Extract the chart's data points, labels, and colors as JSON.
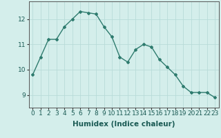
{
  "x": [
    0,
    1,
    2,
    3,
    4,
    5,
    6,
    7,
    8,
    9,
    10,
    11,
    12,
    13,
    14,
    15,
    16,
    17,
    18,
    19,
    20,
    21,
    22,
    23
  ],
  "y": [
    9.8,
    10.5,
    11.2,
    11.2,
    11.7,
    12.0,
    12.3,
    12.25,
    12.2,
    11.7,
    11.3,
    10.5,
    10.3,
    10.8,
    11.0,
    10.9,
    10.4,
    10.1,
    9.8,
    9.35,
    9.1,
    9.1,
    9.1,
    8.9
  ],
  "line_color": "#2e7b6e",
  "marker": "D",
  "marker_size": 2,
  "linewidth": 1.0,
  "background_color": "#d4eeeb",
  "grid_color": "#b8dbd8",
  "xlabel": "Humidex (Indice chaleur)",
  "xlabel_fontsize": 7.5,
  "ylabel_ticks": [
    9,
    10,
    11,
    12
  ],
  "ylim": [
    8.5,
    12.7
  ],
  "xlim": [
    -0.5,
    23.5
  ],
  "xtick_labels": [
    "0",
    "1",
    "2",
    "3",
    "4",
    "5",
    "6",
    "7",
    "8",
    "9",
    "10",
    "11",
    "12",
    "13",
    "14",
    "15",
    "16",
    "17",
    "18",
    "19",
    "20",
    "21",
    "22",
    "23"
  ],
  "tick_fontsize": 6.5
}
